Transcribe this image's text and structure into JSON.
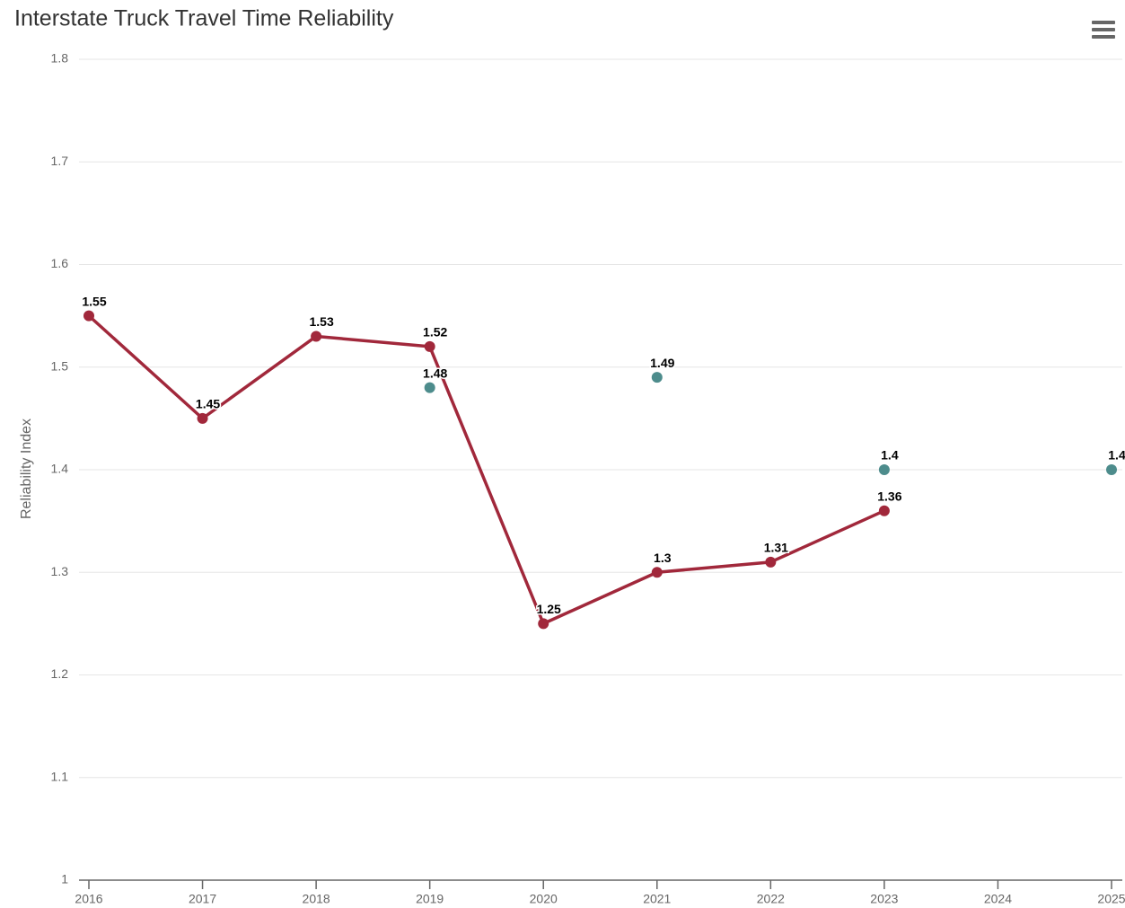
{
  "chart_data": {
    "type": "line",
    "title": "Interstate Truck Travel Time Reliability",
    "y_label": "Reliability Index",
    "categories": [
      "2016",
      "2017",
      "2018",
      "2019",
      "2020",
      "2021",
      "2022",
      "2023",
      "2024",
      "2025"
    ],
    "series": [
      {
        "color": "#a1283b",
        "line": true,
        "values": [
          1.55,
          1.45,
          1.53,
          1.52,
          1.25,
          1.3,
          1.31,
          1.36,
          null,
          null
        ]
      },
      {
        "color": "#4d8c8c",
        "line": false,
        "values": [
          null,
          null,
          null,
          1.48,
          null,
          1.49,
          null,
          1.4,
          null,
          1.4
        ]
      }
    ],
    "ylim": [
      1,
      1.8
    ],
    "yticks": [
      1,
      1.1,
      1.2,
      1.3,
      1.4,
      1.5,
      1.6,
      1.7,
      1.8
    ],
    "grid": true
  }
}
